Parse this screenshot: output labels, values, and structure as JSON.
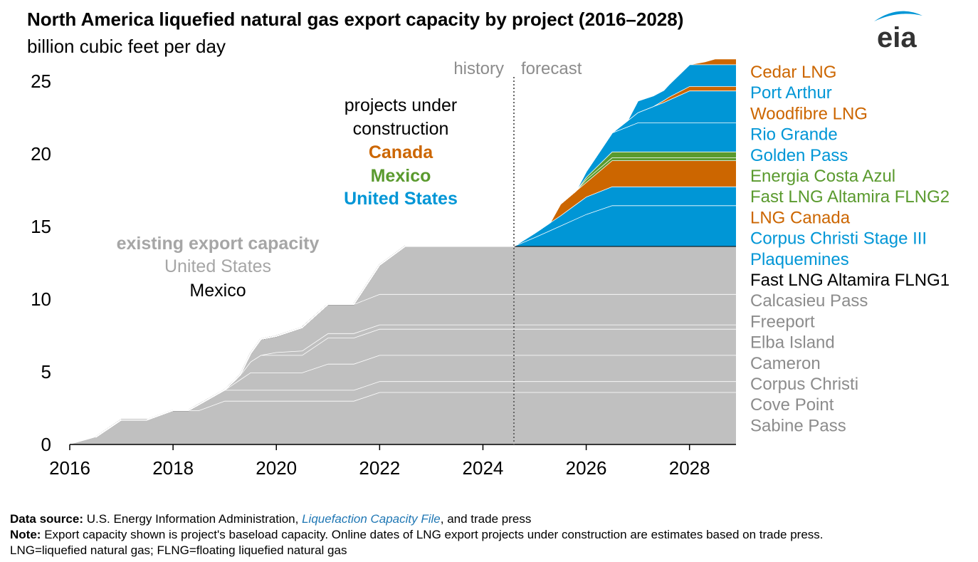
{
  "header": {
    "title": "North America liquefied natural gas export capacity by project (2016–2028)",
    "subtitle": "billion cubic feet per day"
  },
  "logo": {
    "text": "eia",
    "icon": "eia-wave-logo"
  },
  "colors": {
    "existing": "#c0c0c0",
    "us": "#0096d6",
    "canada": "#cc6600",
    "mexico": "#5a9a2e",
    "mexico_existing": "#000000",
    "legend_existing": "#8c8c8c"
  },
  "chart_data": {
    "type": "area",
    "stacked": true,
    "x_unit": "year",
    "xlim": [
      2016,
      2028.9
    ],
    "ylim": [
      0,
      25
    ],
    "x_ticks": [
      2016,
      2018,
      2020,
      2022,
      2024,
      2026,
      2028
    ],
    "y_ticks": [
      0,
      5,
      10,
      15,
      20,
      25
    ],
    "divider": {
      "x": 2024.6,
      "left_label": "history",
      "right_label": "forecast"
    },
    "annotations": {
      "existing_heading": "existing export capacity",
      "existing_us": "United States",
      "existing_mexico": "Mexico",
      "construction_heading_1": "projects under",
      "construction_heading_2": "construction",
      "construction_canada": "Canada",
      "construction_mexico": "Mexico",
      "construction_us": "United States"
    },
    "series": [
      {
        "name": "Sabine Pass",
        "country": "existing",
        "points": [
          [
            2016,
            0
          ],
          [
            2016.5,
            0.5
          ],
          [
            2017,
            1.7
          ],
          [
            2017.5,
            1.7
          ],
          [
            2018,
            2.35
          ],
          [
            2018.5,
            2.35
          ],
          [
            2019,
            3.0
          ],
          [
            2021.5,
            3.0
          ],
          [
            2022,
            3.6
          ],
          [
            2028.9,
            3.6
          ]
        ]
      },
      {
        "name": "Cove Point",
        "country": "existing",
        "points": [
          [
            2016,
            0
          ],
          [
            2018,
            0
          ],
          [
            2018.3,
            0
          ],
          [
            2018.5,
            0.4
          ],
          [
            2019,
            0.75
          ],
          [
            2021.5,
            0.75
          ],
          [
            2022,
            0.75
          ],
          [
            2028.9,
            0.75
          ]
        ]
      },
      {
        "name": "Corpus Christi",
        "country": "existing",
        "points": [
          [
            2016,
            0
          ],
          [
            2019,
            0
          ],
          [
            2019.5,
            1.2
          ],
          [
            2020.5,
            1.2
          ],
          [
            2021,
            1.8
          ],
          [
            2021.5,
            1.8
          ],
          [
            2022,
            1.8
          ],
          [
            2028.9,
            1.8
          ]
        ]
      },
      {
        "name": "Cameron",
        "country": "existing",
        "points": [
          [
            2016,
            0
          ],
          [
            2019,
            0
          ],
          [
            2019.3,
            0.3
          ],
          [
            2019.7,
            1.2
          ],
          [
            2020,
            1.2
          ],
          [
            2020.5,
            1.2
          ],
          [
            2021,
            1.8
          ],
          [
            2021.5,
            1.8
          ],
          [
            2022,
            1.8
          ],
          [
            2028.9,
            1.8
          ]
        ]
      },
      {
        "name": "Elba Island",
        "country": "existing",
        "points": [
          [
            2016,
            0
          ],
          [
            2019.7,
            0
          ],
          [
            2020,
            0.2
          ],
          [
            2020.5,
            0.3
          ],
          [
            2021,
            0.3
          ],
          [
            2028.9,
            0.3
          ]
        ]
      },
      {
        "name": "Freeport",
        "country": "existing",
        "points": [
          [
            2016,
            0
          ],
          [
            2019.3,
            0
          ],
          [
            2019.7,
            1.1
          ],
          [
            2020,
            1.1
          ],
          [
            2020.5,
            1.6
          ],
          [
            2021,
            2.0
          ],
          [
            2021.5,
            2.0
          ],
          [
            2022,
            2.1
          ],
          [
            2028.9,
            2.1
          ]
        ]
      },
      {
        "name": "Calcasieu Pass",
        "country": "existing",
        "points": [
          [
            2016,
            0
          ],
          [
            2021.5,
            0
          ],
          [
            2022,
            2.0
          ],
          [
            2022.5,
            3.3
          ],
          [
            2028.9,
            3.3
          ]
        ]
      },
      {
        "name": "Fast LNG Altamira FLNG1",
        "country": "mexico_existing",
        "points": [
          [
            2016,
            0
          ],
          [
            2028.9,
            0
          ]
        ]
      },
      {
        "name": "Plaquemines",
        "country": "us",
        "points": [
          [
            2016,
            0
          ],
          [
            2024.6,
            0
          ],
          [
            2025,
            0.6
          ],
          [
            2025.5,
            1.4
          ],
          [
            2026,
            2.2
          ],
          [
            2026.5,
            2.8
          ],
          [
            2028.9,
            2.8
          ]
        ]
      },
      {
        "name": "Corpus Christi Stage III",
        "country": "us",
        "points": [
          [
            2016,
            0
          ],
          [
            2024.6,
            0
          ],
          [
            2025,
            0.3
          ],
          [
            2025.5,
            0.7
          ],
          [
            2026,
            1.2
          ],
          [
            2026.5,
            1.3
          ],
          [
            2028.9,
            1.3
          ]
        ]
      },
      {
        "name": "LNG Canada",
        "country": "canada",
        "points": [
          [
            2016,
            0
          ],
          [
            2025.3,
            0
          ],
          [
            2025.5,
            0.8
          ],
          [
            2026,
            1.0
          ],
          [
            2026.5,
            1.8
          ],
          [
            2028.9,
            1.8
          ]
        ]
      },
      {
        "name": "Fast LNG Altamira FLNG2",
        "country": "mexico",
        "points": [
          [
            2016,
            0
          ],
          [
            2025.8,
            0
          ],
          [
            2026,
            0.2
          ],
          [
            2028.9,
            0.2
          ]
        ]
      },
      {
        "name": "Energia Costa Azul",
        "country": "mexico",
        "points": [
          [
            2016,
            0
          ],
          [
            2025.8,
            0
          ],
          [
            2026,
            0.15
          ],
          [
            2026.5,
            0.4
          ],
          [
            2028.9,
            0.4
          ]
        ]
      },
      {
        "name": "Golden Pass",
        "country": "us",
        "points": [
          [
            2016,
            0
          ],
          [
            2025.8,
            0
          ],
          [
            2026,
            0.4
          ],
          [
            2026.5,
            1.3
          ],
          [
            2027,
            2.0
          ],
          [
            2028.9,
            2.0
          ]
        ]
      },
      {
        "name": "Rio Grande",
        "country": "us",
        "points": [
          [
            2016,
            0
          ],
          [
            2026.5,
            0
          ],
          [
            2027,
            0.7
          ],
          [
            2027.5,
            1.4
          ],
          [
            2028,
            2.2
          ],
          [
            2028.9,
            2.2
          ]
        ]
      },
      {
        "name": "Woodfibre LNG",
        "country": "canada",
        "points": [
          [
            2016,
            0
          ],
          [
            2027.3,
            0
          ],
          [
            2027.6,
            0.2
          ],
          [
            2028,
            0.3
          ],
          [
            2028.9,
            0.3
          ]
        ]
      },
      {
        "name": "Port Arthur",
        "country": "us",
        "points": [
          [
            2016,
            0
          ],
          [
            2026.8,
            0
          ],
          [
            2027,
            0.8
          ],
          [
            2027.5,
            0.7
          ],
          [
            2028,
            1.5
          ],
          [
            2028.9,
            1.5
          ]
        ]
      },
      {
        "name": "Cedar LNG",
        "country": "canada",
        "points": [
          [
            2016,
            0
          ],
          [
            2028,
            0
          ],
          [
            2028.3,
            0.2
          ],
          [
            2028.5,
            0.4
          ],
          [
            2028.9,
            0.4
          ]
        ]
      }
    ]
  },
  "footer": {
    "source_label": "Data source:",
    "source_text_1": "U.S. Energy Information Administration,",
    "source_link": "Liquefaction Capacity File",
    "source_text_2": ", and trade press",
    "note_label": "Note:",
    "note_text": "Export capacity shown is project's baseload capacity. Online dates of LNG export projects under construction are estimates based on trade press.",
    "abbrev_text": "LNG=liquefied natural gas; FLNG=floating liquefied natural gas"
  }
}
